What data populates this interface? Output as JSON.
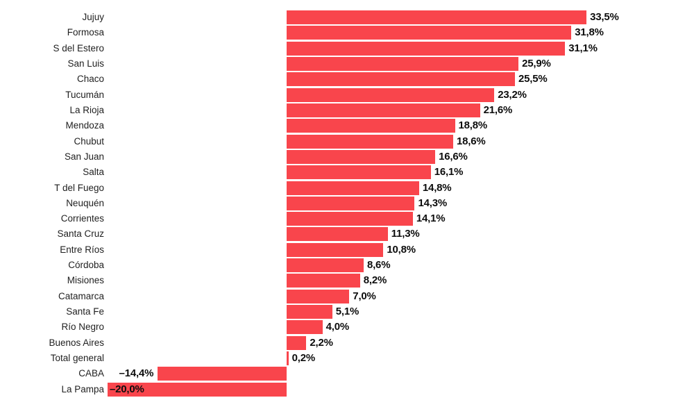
{
  "chart_data": {
    "type": "bar",
    "orientation": "horizontal",
    "title": "",
    "xlabel": "",
    "ylabel": "",
    "xlim": [
      -20.0,
      33.5
    ],
    "grid": false,
    "legend": false,
    "bar_color": "#F9454C",
    "category_label_color": "#1f1f1f",
    "value_label_color": "#0d0d0d",
    "categories": [
      "Jujuy",
      "Formosa",
      "S del Estero",
      "San Luis",
      "Chaco",
      "Tucumán",
      "La Rioja",
      "Mendoza",
      "Chubut",
      "San Juan",
      "Salta",
      "T del Fuego",
      "Neuquén",
      "Corrientes",
      "Santa Cruz",
      "Entre Ríos",
      "Córdoba",
      "Misiones",
      "Catamarca",
      "Santa Fe",
      "Río Negro",
      "Buenos Aires",
      "Total general",
      "CABA",
      "La Pampa"
    ],
    "values": [
      33.5,
      31.8,
      31.1,
      25.9,
      25.5,
      23.2,
      21.6,
      18.8,
      18.6,
      16.6,
      16.1,
      14.8,
      14.3,
      14.1,
      11.3,
      10.8,
      8.6,
      8.2,
      7.0,
      5.1,
      4.0,
      2.2,
      0.2,
      -14.4,
      -20.0
    ],
    "value_labels": [
      "33,5%",
      "31,8%",
      "31,1%",
      "25,9%",
      "25,5%",
      "23,2%",
      "21,6%",
      "18,8%",
      "18,6%",
      "16,6%",
      "16,1%",
      "14,8%",
      "14,3%",
      "14,1%",
      "11,3%",
      "10,8%",
      "8,6%",
      "8,2%",
      "7,0%",
      "5,1%",
      "4,0%",
      "2,2%",
      "0,2%",
      "–14,4%",
      "–20,0%"
    ],
    "value_label_placement": [
      "right",
      "right",
      "right",
      "right",
      "right",
      "right",
      "right",
      "right",
      "right",
      "right",
      "right",
      "right",
      "right",
      "right",
      "right",
      "right",
      "right",
      "right",
      "right",
      "right",
      "right",
      "right",
      "right",
      "outside-left",
      "inside-left"
    ]
  }
}
